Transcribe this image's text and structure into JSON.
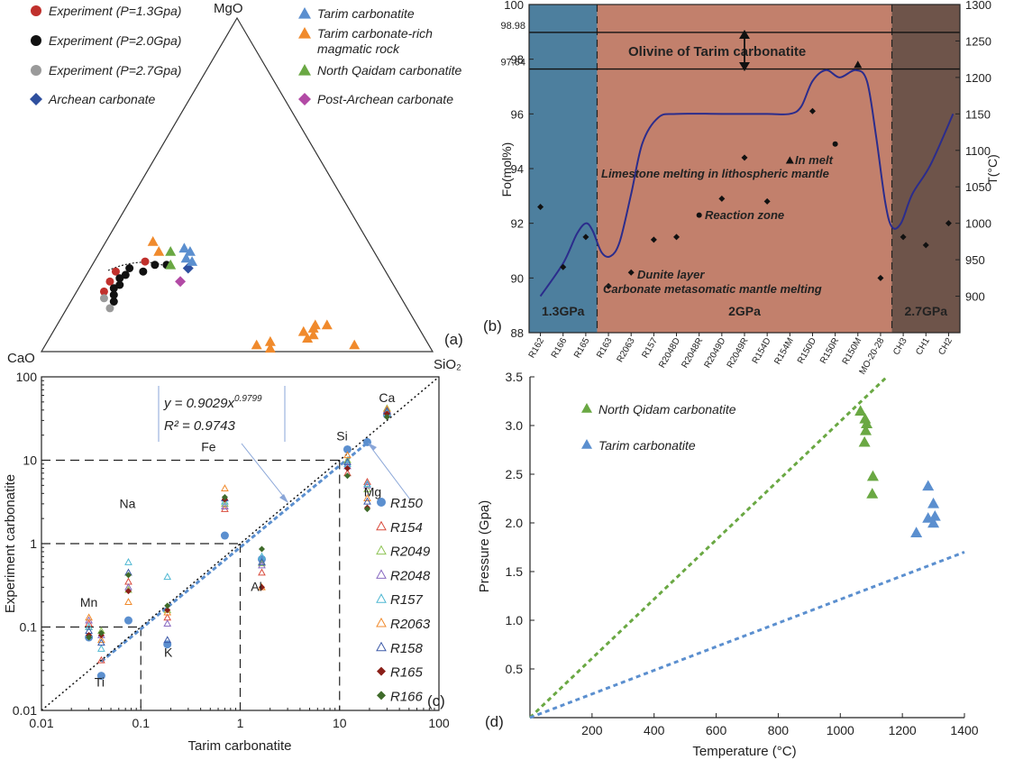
{
  "panel_a": {
    "label": "(a)",
    "apex_top": "MgO",
    "apex_left": "CaO",
    "apex_right": "SiO₂",
    "legend": [
      {
        "name": "Experiment (P=1.3Gpa)",
        "marker": "circle",
        "color": "#c0302c"
      },
      {
        "name": "Experiment (P=2.0Gpa)",
        "marker": "circle",
        "color": "#111111"
      },
      {
        "name": "Experiment (P=2.7Gpa)",
        "marker": "circle",
        "color": "#9a9a9a"
      },
      {
        "name": "Archean carbonate",
        "marker": "diamond",
        "color": "#2e4f9e"
      },
      {
        "name": "Tarim carbonatite",
        "marker": "triangle",
        "color": "#5b8fcf"
      },
      {
        "name": "Tarim carbonate-rich",
        "name2": "magmatic rock",
        "marker": "triangle",
        "color": "#f08a2c"
      },
      {
        "name": "North Qaidam carbonatite",
        "marker": "triangle",
        "color": "#6aa843"
      },
      {
        "name": "Post-Archean carbonate",
        "marker": "diamond",
        "color": "#b24aa5"
      }
    ]
  },
  "panel_b": {
    "label": "(b)",
    "ylabel_left": "Fo(mol%)",
    "ylabel_right": "T(°C)",
    "ref_lines": [
      "98.98",
      "97.64"
    ],
    "zones": [
      {
        "name": "1.3GPa",
        "color": "#4d7f9e"
      },
      {
        "name": "2GPa",
        "color": "#c2806c"
      },
      {
        "name": "2.7GPa",
        "color": "#6e544a"
      }
    ],
    "annotations": [
      "Olivine of Tarim carbonatite",
      "In melt",
      "Limestone melting in lithospheric mantle",
      "Reaction zone",
      "Dunite layer",
      "Carbonate metasomatic mantle melting"
    ]
  },
  "panel_c": {
    "label": "(c)",
    "equation": "y = 0.9029x",
    "exponent": "0.9799",
    "r2": "R² = 0.9743",
    "element_labels": [
      "Ca",
      "Si",
      "Mg",
      "Fe",
      "Na",
      "Al",
      "Mn",
      "K",
      "Ti"
    ],
    "legend": [
      {
        "name": "R150",
        "marker": "filled-circle",
        "color": "#5b8fcf"
      },
      {
        "name": "R154",
        "marker": "open-triangle",
        "color": "#d94b3c"
      },
      {
        "name": "R2049",
        "marker": "open-triangle",
        "color": "#8fc456"
      },
      {
        "name": "R2048",
        "marker": "open-triangle",
        "color": "#8869c0"
      },
      {
        "name": "R157",
        "marker": "open-triangle",
        "color": "#4fb7d2"
      },
      {
        "name": "R2063",
        "marker": "open-triangle",
        "color": "#f08a2c"
      },
      {
        "name": "R158",
        "marker": "open-triangle",
        "color": "#3d5aa8"
      },
      {
        "name": "R165",
        "marker": "filled-diamond",
        "color": "#8a1f18"
      },
      {
        "name": "R166",
        "marker": "filled-diamond",
        "color": "#3f6b2a"
      }
    ]
  },
  "panel_d": {
    "label": "(d)",
    "legend": [
      {
        "name": "North Qidam carbonatite",
        "color": "#6aa843"
      },
      {
        "name": "Tarim carbonatite",
        "color": "#5b8fcf"
      }
    ]
  },
  "chart_data": [
    {
      "type": "scatter",
      "title": "",
      "subtype": "ternary",
      "axes": [
        "MgO",
        "CaO",
        "SiO₂"
      ],
      "series": [
        {
          "name": "Experiment (P=1.3Gpa)",
          "points": [
            {
              "CaO": 75,
              "MgO": 18,
              "SiO2": 7
            },
            {
              "CaO": 72,
              "MgO": 21,
              "SiO2": 7
            },
            {
              "CaO": 69,
              "MgO": 24,
              "SiO2": 7
            },
            {
              "CaO": 60,
              "MgO": 27,
              "SiO2": 13
            }
          ]
        },
        {
          "name": "Experiment (P=2.0Gpa)",
          "points": [
            {
              "CaO": 74,
              "MgO": 15,
              "SiO2": 11
            },
            {
              "CaO": 73,
              "MgO": 17,
              "SiO2": 10
            },
            {
              "CaO": 72,
              "MgO": 19,
              "SiO2": 9
            },
            {
              "CaO": 70,
              "MgO": 20,
              "SiO2": 10
            },
            {
              "CaO": 69,
              "MgO": 22,
              "SiO2": 9
            },
            {
              "CaO": 67,
              "MgO": 23,
              "SiO2": 10
            },
            {
              "CaO": 65,
              "MgO": 25,
              "SiO2": 10
            },
            {
              "CaO": 62,
              "MgO": 24,
              "SiO2": 14
            },
            {
              "CaO": 58,
              "MgO": 26,
              "SiO2": 16
            },
            {
              "CaO": 55,
              "MgO": 26,
              "SiO2": 19
            }
          ]
        },
        {
          "name": "Experiment (P=2.7Gpa)",
          "points": [
            {
              "CaO": 76,
              "MgO": 16,
              "SiO2": 8
            },
            {
              "CaO": 76,
              "MgO": 13,
              "SiO2": 11
            }
          ]
        },
        {
          "name": "Archean carbonate",
          "points": [
            {
              "CaO": 50,
              "MgO": 25,
              "SiO2": 25
            }
          ]
        },
        {
          "name": "Tarim carbonatite",
          "points": [
            {
              "CaO": 48,
              "MgO": 31,
              "SiO2": 21
            },
            {
              "CaO": 47,
              "MgO": 30,
              "SiO2": 23
            },
            {
              "CaO": 49,
              "MgO": 28,
              "SiO2": 23
            },
            {
              "CaO": 48,
              "MgO": 27,
              "SiO2": 25
            }
          ]
        },
        {
          "name": "Tarim carbonate-rich magmatic rock",
          "points": [
            {
              "CaO": 55,
              "MgO": 33,
              "SiO2": 12
            },
            {
              "CaO": 55,
              "MgO": 30,
              "SiO2": 15
            },
            {
              "CaO": 44,
              "MgO": 2,
              "SiO2": 54
            },
            {
              "CaO": 41,
              "MgO": 1,
              "SiO2": 58
            },
            {
              "CaO": 40,
              "MgO": 3,
              "SiO2": 57
            },
            {
              "CaO": 30,
              "MgO": 4,
              "SiO2": 66
            },
            {
              "CaO": 30,
              "MgO": 6,
              "SiO2": 64
            },
            {
              "CaO": 28,
              "MgO": 5,
              "SiO2": 67
            },
            {
              "CaO": 27,
              "MgO": 7,
              "SiO2": 66
            },
            {
              "CaO": 26,
              "MgO": 8,
              "SiO2": 66
            },
            {
              "CaO": 23,
              "MgO": 8,
              "SiO2": 69
            },
            {
              "CaO": 19,
              "MgO": 2,
              "SiO2": 79
            }
          ]
        },
        {
          "name": "North Qaidam carbonatite",
          "points": [
            {
              "CaO": 52,
              "MgO": 30,
              "SiO2": 18
            },
            {
              "CaO": 54,
              "MgO": 26,
              "SiO2": 20
            }
          ]
        },
        {
          "name": "Post-Archean carbonate",
          "points": [
            {
              "CaO": 54,
              "MgO": 21,
              "SiO2": 25
            }
          ]
        }
      ]
    },
    {
      "type": "line",
      "title": "",
      "ylabel": "Fo(mol%)",
      "ylabel_right": "T(°C)",
      "ylim": [
        88,
        100
      ],
      "y2lim": [
        850,
        1300
      ],
      "yticks": [
        88,
        90,
        92,
        94,
        96,
        98,
        100
      ],
      "y2ticks": [
        900,
        950,
        1000,
        1050,
        1100,
        1150,
        1200,
        1250,
        1300
      ],
      "categories": [
        "R162",
        "R166",
        "R165",
        "R163",
        "R2063",
        "R157",
        "R2048D",
        "R2048R",
        "R2049D",
        "R2049R",
        "R154D",
        "R154M",
        "R150D",
        "R150R",
        "R150M",
        "MO-20-28",
        "CH3",
        "CH1",
        "CH2"
      ],
      "fo_points": [
        {
          "x": 0,
          "fo": 92.6,
          "marker": "diamond"
        },
        {
          "x": 1,
          "fo": 90.4,
          "marker": "diamond"
        },
        {
          "x": 2,
          "fo": 91.5,
          "marker": "diamond"
        },
        {
          "x": 3,
          "fo": 89.7,
          "marker": "diamond"
        },
        {
          "x": 4,
          "fo": 90.2,
          "marker": "diamond"
        },
        {
          "x": 5,
          "fo": 91.4,
          "marker": "diamond"
        },
        {
          "x": 6,
          "fo": 91.5,
          "marker": "diamond"
        },
        {
          "x": 7,
          "fo": 92.3,
          "marker": "dot"
        },
        {
          "x": 8,
          "fo": 92.9,
          "marker": "diamond"
        },
        {
          "x": 9,
          "fo": 94.4,
          "marker": "diamond"
        },
        {
          "x": 10,
          "fo": 92.8,
          "marker": "diamond"
        },
        {
          "x": 11,
          "fo": 94.3,
          "marker": "triangle"
        },
        {
          "x": 12,
          "fo": 96.1,
          "marker": "diamond"
        },
        {
          "x": 13,
          "fo": 94.9,
          "marker": "dot"
        },
        {
          "x": 14,
          "fo": 97.8,
          "marker": "triangle"
        },
        {
          "x": 15,
          "fo": 90.0,
          "marker": "diamond"
        },
        {
          "x": 16,
          "fo": 91.5,
          "marker": "diamond"
        },
        {
          "x": 17,
          "fo": 91.2,
          "marker": "diamond"
        },
        {
          "x": 18,
          "fo": 92.0,
          "marker": "diamond"
        }
      ],
      "temperature_curve": [
        {
          "x": 0,
          "t": 900
        },
        {
          "x": 1,
          "t": 945
        },
        {
          "x": 1.6,
          "t": 985
        },
        {
          "x": 2,
          "t": 1000
        },
        {
          "x": 2.3,
          "t": 990
        },
        {
          "x": 2.7,
          "t": 960
        },
        {
          "x": 3.1,
          "t": 955
        },
        {
          "x": 3.5,
          "t": 975
        },
        {
          "x": 4,
          "t": 1040
        },
        {
          "x": 4.5,
          "t": 1110
        },
        {
          "x": 5.2,
          "t": 1145
        },
        {
          "x": 6,
          "t": 1150
        },
        {
          "x": 8,
          "t": 1150
        },
        {
          "x": 10,
          "t": 1150
        },
        {
          "x": 11,
          "t": 1150
        },
        {
          "x": 11.5,
          "t": 1160
        },
        {
          "x": 12,
          "t": 1195
        },
        {
          "x": 12.6,
          "t": 1210
        },
        {
          "x": 13.2,
          "t": 1200
        },
        {
          "x": 13.9,
          "t": 1210
        },
        {
          "x": 14.4,
          "t": 1195
        },
        {
          "x": 14.8,
          "t": 1120
        },
        {
          "x": 15.2,
          "t": 1030
        },
        {
          "x": 15.5,
          "t": 995
        },
        {
          "x": 15.9,
          "t": 1000
        },
        {
          "x": 16.4,
          "t": 1040
        },
        {
          "x": 17.2,
          "t": 1080
        },
        {
          "x": 18.2,
          "t": 1150
        }
      ],
      "zone_bounds": [
        -0.5,
        2.5,
        15.5,
        18.5
      ]
    },
    {
      "type": "scatter",
      "title": "",
      "xlabel": "Tarim carbonatite",
      "ylabel": "Experiment carbonatite",
      "xscale": "log",
      "yscale": "log",
      "xlim": [
        0.01,
        100
      ],
      "ylim": [
        0.01,
        100
      ],
      "xticks": [
        "0.01",
        "0.1",
        "1",
        "10",
        "100"
      ],
      "yticks": [
        "0.01",
        "0.1",
        "1",
        "10",
        "100"
      ],
      "fit": {
        "a": 0.9029,
        "b": 0.9799,
        "r2": 0.9743
      },
      "guides": [
        0.1,
        1,
        10
      ],
      "element_x": {
        "Ca": 30,
        "Si": 12,
        "Mg": 19,
        "Fe": 0.7,
        "Na": 0.075,
        "Al": 1.65,
        "Mn": 0.03,
        "K": 0.185,
        "Ti": 0.04
      },
      "series": [
        {
          "name": "R150",
          "values": {
            "Ca": 35,
            "Si": 13.5,
            "Mg": 16.5,
            "Fe": 1.25,
            "Na": 0.12,
            "Al": 0.65,
            "Mn": 0.075,
            "K": 0.062,
            "Ti": 0.026
          }
        },
        {
          "name": "R154",
          "values": {
            "Ca": 38,
            "Si": 7,
            "Mg": 5.5,
            "Fe": 2.6,
            "Na": 0.35,
            "Al": 0.45,
            "Mn": 0.11,
            "K": 0.13,
            "Ti": 0.04
          }
        },
        {
          "name": "R2049",
          "values": {
            "Ca": 42,
            "Si": 10,
            "Mg": 4.5,
            "Fe": 3.0,
            "Na": 0.28,
            "Al": 0.58,
            "Mn": 0.1,
            "K": 0.16,
            "Ti": 0.09
          }
        },
        {
          "name": "R2048",
          "values": {
            "Ca": 40,
            "Si": 8.5,
            "Mg": 5.0,
            "Fe": 2.8,
            "Na": 0.3,
            "Al": 0.55,
            "Mn": 0.12,
            "K": 0.11,
            "Ti": 0.08
          }
        },
        {
          "name": "R157",
          "values": {
            "Ca": 37,
            "Si": 9,
            "Mg": 5.2,
            "Fe": 3.2,
            "Na": 0.6,
            "Al": 0.7,
            "Mn": 0.1,
            "K": 0.4,
            "Ti": 0.055
          }
        },
        {
          "name": "R2063",
          "values": {
            "Ca": 41,
            "Si": 11.5,
            "Mg": 3.5,
            "Fe": 4.6,
            "Na": 0.2,
            "Al": 0.3,
            "Mn": 0.13,
            "K": 0.15,
            "Ti": 0.07
          }
        },
        {
          "name": "R158",
          "values": {
            "Ca": 39,
            "Si": 9.5,
            "Mg": 3.2,
            "Fe": 3.5,
            "Na": 0.45,
            "Al": 0.6,
            "Mn": 0.09,
            "K": 0.07,
            "Ti": 0.065
          }
        },
        {
          "name": "R165",
          "values": {
            "Ca": 36,
            "Si": 8,
            "Mg": 2.7,
            "Fe": 3.4,
            "Na": 0.27,
            "Al": 0.3,
            "Mn": 0.08,
            "K": 0.16,
            "Ti": 0.08
          }
        },
        {
          "name": "R166",
          "values": {
            "Ca": 33,
            "Si": 6.5,
            "Mg": 2.6,
            "Fe": 3.6,
            "Na": 0.42,
            "Al": 0.86,
            "Mn": 0.075,
            "K": 0.18,
            "Ti": 0.085
          }
        }
      ]
    },
    {
      "type": "scatter",
      "title": "",
      "xlabel": "Temperature (°C)",
      "ylabel": "Pressure (Gpa)",
      "xlim": [
        0,
        1400
      ],
      "ylim": [
        0,
        3.5
      ],
      "xticks": [
        200,
        400,
        600,
        800,
        1000,
        1200,
        1400
      ],
      "yticks": [
        0.5,
        1.0,
        1.5,
        2.0,
        2.5,
        3.0,
        3.5
      ],
      "trend_lines": [
        {
          "series": "North Qidam carbonatite",
          "from": [
            0,
            0
          ],
          "to": [
            1150,
            3.5
          ]
        },
        {
          "series": "Tarim carbonatite",
          "from": [
            0,
            0
          ],
          "to": [
            1400,
            1.7
          ]
        }
      ],
      "series": [
        {
          "name": "North Qidam carbonatite",
          "points": [
            [
              1065,
              3.15
            ],
            [
              1080,
              3.07
            ],
            [
              1085,
              3.02
            ],
            [
              1082,
              2.95
            ],
            [
              1078,
              2.83
            ],
            [
              1105,
              2.48
            ],
            [
              1103,
              2.3
            ]
          ]
        },
        {
          "name": "Tarim carbonatite",
          "points": [
            [
              1283,
              2.38
            ],
            [
              1300,
              2.2
            ],
            [
              1283,
              2.05
            ],
            [
              1305,
              2.07
            ],
            [
              1300,
              2.0
            ],
            [
              1245,
              1.9
            ]
          ]
        }
      ]
    }
  ]
}
